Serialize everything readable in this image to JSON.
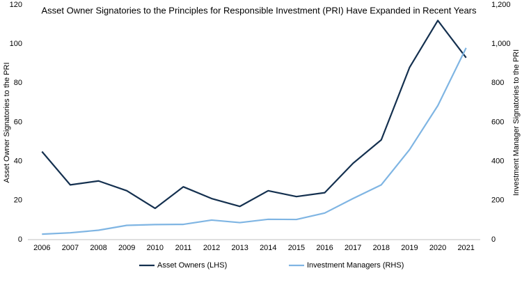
{
  "chart_data": {
    "type": "line",
    "title": "Asset Owner Signatories to the Principles for Responsible Investment (PRI) Have Expanded in Recent Years",
    "y_label": "Asset Owner Signatories to the PRI",
    "y2_label": "Investment Manager Signatories to the PRI",
    "categories": [
      "2006",
      "2007",
      "2008",
      "2009",
      "2010",
      "2011",
      "2012",
      "2013",
      "2014",
      "2015",
      "2016",
      "2017",
      "2018",
      "2019",
      "2020",
      "2021"
    ],
    "series": [
      {
        "name": "Asset Owners (LHS)",
        "color": "#14304f",
        "values": [
          45,
          28,
          30,
          25,
          16,
          27,
          21,
          17,
          25,
          22,
          24,
          39,
          51,
          88,
          112,
          93
        ]
      },
      {
        "name": "Investment Managers (RHS)",
        "color": "#7fb5e3",
        "axis": "y2",
        "values": [
          28,
          35,
          48,
          73,
          77,
          78,
          100,
          87,
          104,
          103,
          136,
          210,
          280,
          460,
          685,
          980
        ]
      }
    ],
    "ylim": [
      0,
      120
    ],
    "yticks": [
      0,
      20,
      40,
      60,
      80,
      100,
      120
    ],
    "y2lim": [
      0,
      1200
    ],
    "y2ticks": [
      0,
      200,
      400,
      600,
      800,
      {
        "value": 1000,
        "label": "1,000"
      },
      {
        "value": 1200,
        "label": "1,200"
      }
    ],
    "grid": false,
    "legend": "bottom"
  }
}
